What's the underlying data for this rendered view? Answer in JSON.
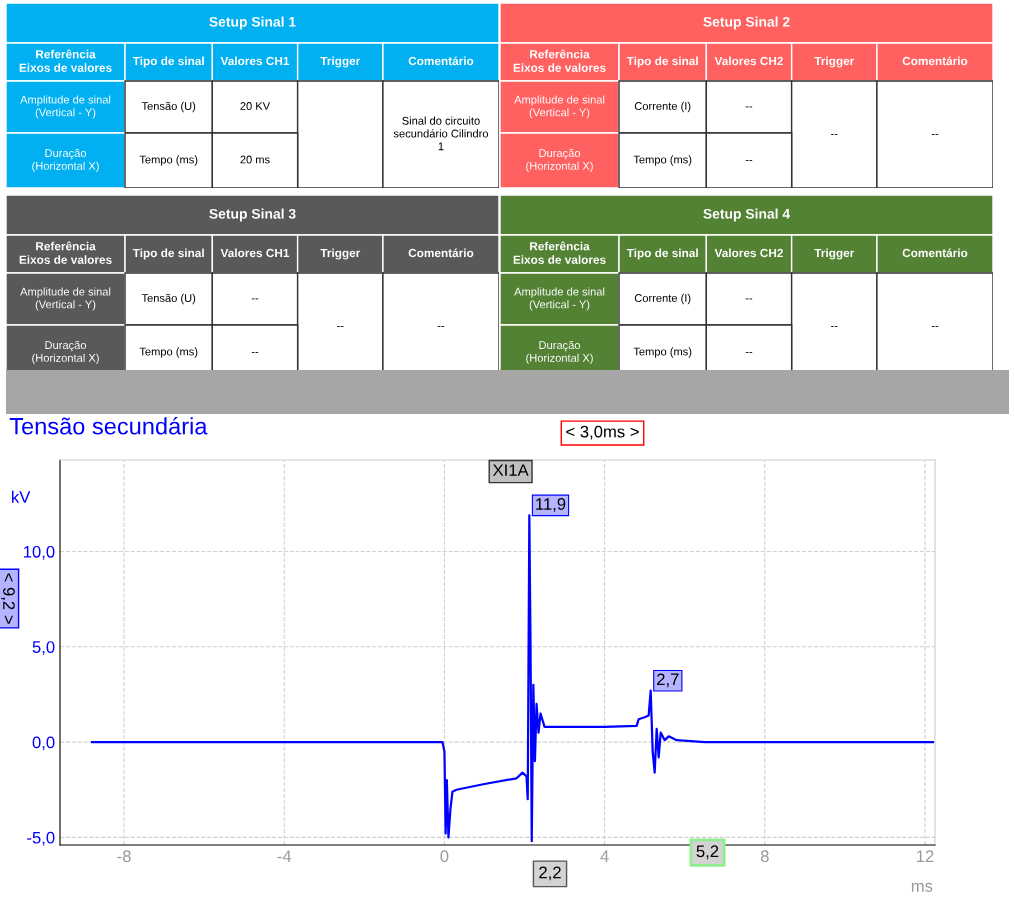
{
  "chart_data": [
    {
      "type": "other",
      "title": "Setup Sinal 1",
      "color": "#00b0f0",
      "annotations": [
        "Referência\nEixos de valores",
        "Tipo de sinal",
        "Valores CH1",
        "Trigger",
        "Comentário",
        "Amplitude de sinal\n(Vertical - Y)",
        "Tensão (U)",
        "20 KV",
        null,
        "Sinal do circuito\nsecundário Cilindro\n1",
        "Duração\n(Horizontal X)",
        "Tempo (ms)",
        "20 ms"
      ]
    },
    {
      "type": "other",
      "title": "Setup Sinal 2",
      "color": "#ff6161",
      "annotations": [
        "Referência\nEixos de valores",
        "Tipo de sinal",
        "Valores CH2",
        "Trigger",
        "Comentário",
        "Amplitude de sinal\n(Vertical - Y)",
        "Corrente (I)",
        "--",
        "--",
        "--",
        "Duração\n(Horizontal X)",
        "Tempo (ms)",
        "--"
      ]
    },
    {
      "type": "other",
      "title": "Setup Sinal 3",
      "color": "#595959",
      "annotations": [
        "Referência\nEixos de valores",
        "Tipo de sinal",
        "Valores CH1",
        "Trigger",
        "Comentário",
        "Amplitude de sinal\n(Vertical - Y)",
        "Tensão (U)",
        "--",
        "--",
        "--",
        "Duração\n(Horizontal X)",
        "Tempo (ms)",
        "--"
      ]
    },
    {
      "type": "other",
      "title": "Setup Sinal 4",
      "color": "#548235",
      "annotations": [
        "Referência\nEixos de valores",
        "Tipo de sinal",
        "Valores CH2",
        "Trigger",
        "Comentário",
        "Amplitude de sinal\n(Vertical - Y)",
        "Corrente (I)",
        "--",
        "--",
        "--",
        "Duração\n(Horizontal X)",
        "Tempo (ms)",
        "--"
      ]
    },
    {
      "type": "line",
      "title": "Tensão secundária",
      "ylabel": "kV",
      "xlabel": "ms",
      "grid": true,
      "xlim": [
        -9.6,
        12.25
      ],
      "xticks": [
        -8,
        -4,
        0,
        4,
        8,
        12
      ],
      "ylim": [
        -5.4,
        14.8
      ],
      "yticks": [
        {
          "value": -5,
          "label": "-5,0"
        },
        {
          "value": 0,
          "label": "0,0"
        },
        {
          "value": 5,
          "label": "5,0"
        },
        {
          "value": 10,
          "label": "10,0"
        }
      ],
      "series": [
        {
          "color": "#0000ff",
          "x": [
            -8.8,
            -6,
            -3,
            -0.05,
            0,
            0.03,
            0.06,
            0.1,
            0.15,
            0.2,
            0.3,
            1.0,
            1.8,
            1.95,
            2.05,
            2.08,
            2.12,
            2.15,
            2.18,
            2.22,
            2.26,
            2.3,
            2.35,
            2.4,
            2.5,
            3.0,
            4.0,
            4.8,
            4.85,
            5.0,
            5.1,
            5.15,
            5.2,
            5.25,
            5.3,
            5.35,
            5.4,
            5.5,
            5.6,
            5.8,
            6.5,
            12.2
          ],
          "values": [
            0,
            0,
            0,
            0,
            -0.5,
            -4.8,
            -2.0,
            -5.0,
            -3.5,
            -2.6,
            -2.5,
            -2.2,
            -1.9,
            -1.6,
            -1.8,
            -3.0,
            11.9,
            5.0,
            -5.2,
            3.0,
            -1.0,
            2.0,
            0.5,
            1.5,
            0.8,
            0.8,
            0.8,
            0.85,
            1.2,
            1.3,
            1.4,
            2.7,
            -0.5,
            -1.6,
            0.7,
            -0.8,
            0.5,
            0.1,
            0.3,
            0.1,
            0,
            0
          ]
        }
      ],
      "annotations": [
        "< 3,0ms >",
        "< 9,2 >",
        "XI1A",
        "2,2",
        "5,2",
        {
          "text": "11,9",
          "x": 2.12,
          "y": 11.9
        },
        {
          "text": "2,7",
          "x": 5.15,
          "y": 2.7
        }
      ]
    }
  ]
}
